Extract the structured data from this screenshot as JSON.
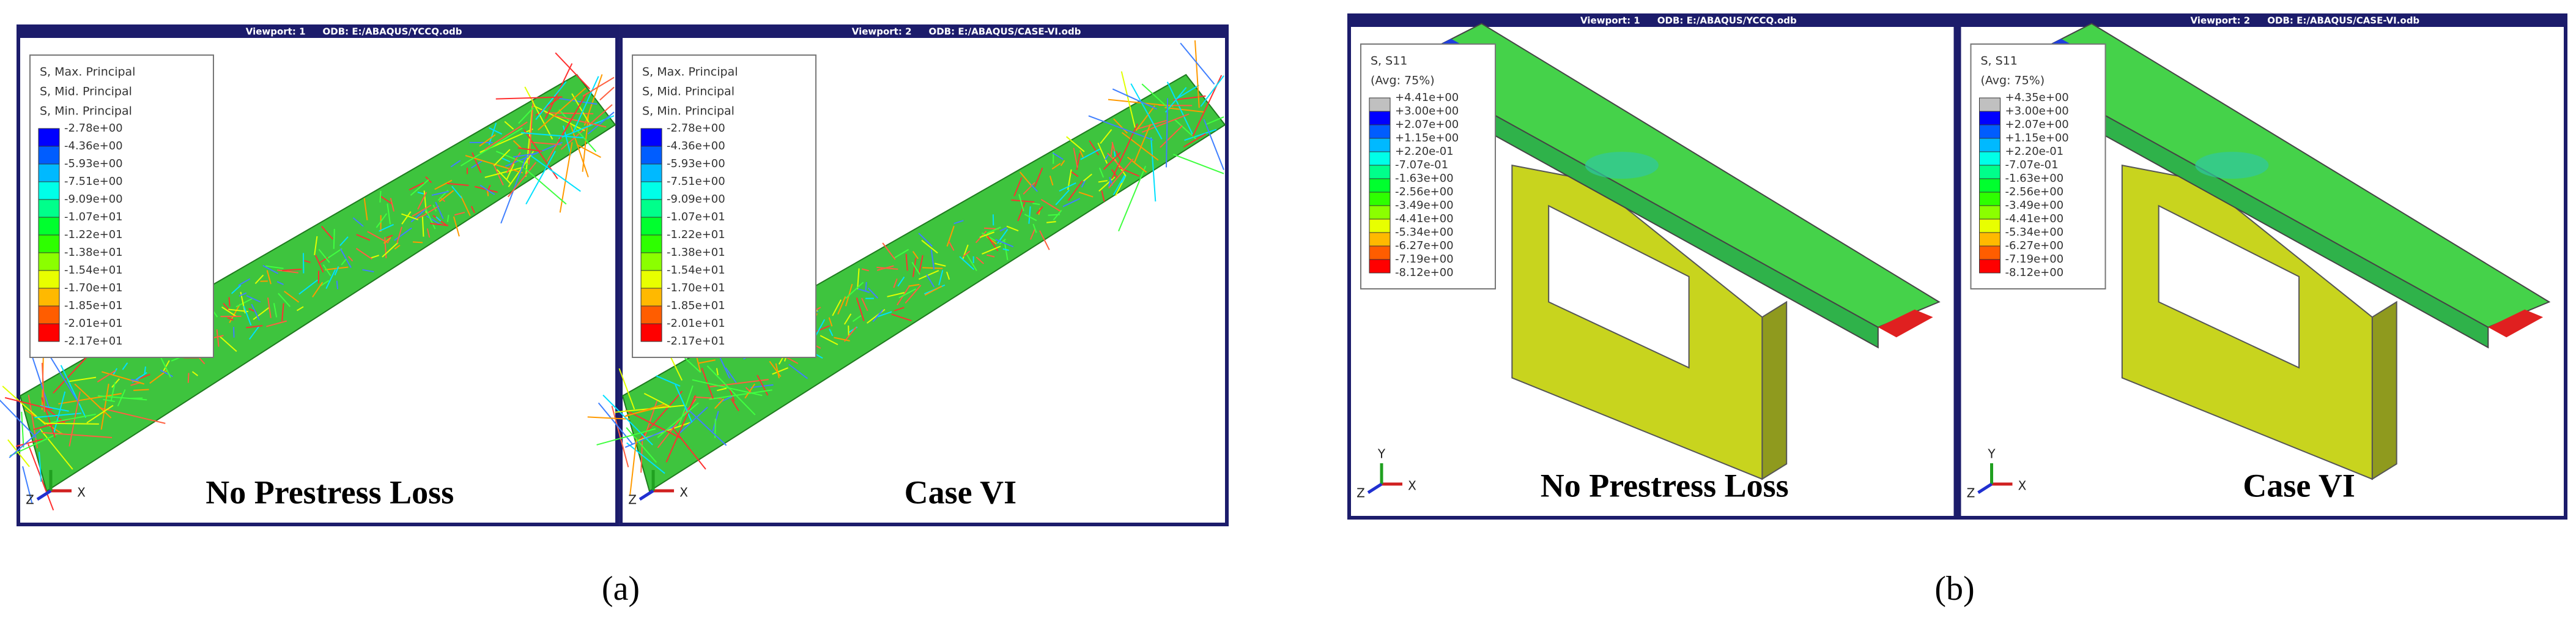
{
  "panels": [
    {
      "label": "(a)",
      "viewports": [
        {
          "viewport": "Viewport: 1",
          "odb": "ODB: E:/ABAQUS/YCCQ.odb",
          "legend_title": [
            "S, Max. Principal",
            "S, Mid. Principal",
            "S, Min. Principal"
          ],
          "legend_values": [
            "-2.78e+00",
            "-4.36e+00",
            "-5.93e+00",
            "-7.51e+00",
            "-9.09e+00",
            "-1.07e+01",
            "-1.22e+01",
            "-1.38e+01",
            "-1.54e+01",
            "-1.70e+01",
            "-1.85e+01",
            "-2.01e+01",
            "-2.17e+01"
          ],
          "axes": [
            "Z",
            "X"
          ],
          "caption": "No Prestress Loss"
        },
        {
          "viewport": "Viewport: 2",
          "odb": "ODB: E:/ABAQUS/CASE-VI.odb",
          "legend_title": [
            "S, Max. Principal",
            "S, Mid. Principal",
            "S, Min. Principal"
          ],
          "legend_values": [
            "-2.78e+00",
            "-4.36e+00",
            "-5.93e+00",
            "-7.51e+00",
            "-9.09e+00",
            "-1.07e+01",
            "-1.22e+01",
            "-1.38e+01",
            "-1.54e+01",
            "-1.70e+01",
            "-1.85e+01",
            "-2.01e+01",
            "-2.17e+01"
          ],
          "axes": [
            "Z",
            "X"
          ],
          "caption": "Case VI"
        }
      ]
    },
    {
      "label": "(b)",
      "viewports": [
        {
          "viewport": "Viewport: 1",
          "odb": "ODB: E:/ABAQUS/YCCQ.odb",
          "legend_title": [
            "S, S11",
            "(Avg: 75%)"
          ],
          "legend_values": [
            "+4.41e+00",
            "+3.00e+00",
            "+2.07e+00",
            "+1.15e+00",
            "+2.20e-01",
            "-7.07e-01",
            "-1.63e+00",
            "-2.56e+00",
            "-3.49e+00",
            "-4.41e+00",
            "-5.34e+00",
            "-6.27e+00",
            "-7.19e+00",
            "-8.12e+00"
          ],
          "axes": [
            "Y",
            "Z",
            "X"
          ],
          "caption": "No Prestress Loss"
        },
        {
          "viewport": "Viewport: 2",
          "odb": "ODB: E:/ABAQUS/CASE-VI.odb",
          "legend_title": [
            "S, S11",
            "(Avg: 75%)"
          ],
          "legend_values": [
            "+4.35e+00",
            "+3.00e+00",
            "+2.07e+00",
            "+1.15e+00",
            "+2.20e-01",
            "-7.07e-01",
            "-1.63e+00",
            "-2.56e+00",
            "-3.49e+00",
            "-4.41e+00",
            "-5.34e+00",
            "-6.27e+00",
            "-7.19e+00",
            "-8.12e+00"
          ],
          "axes": [
            "Y",
            "Z",
            "X"
          ],
          "caption": "Case VI"
        }
      ]
    }
  ]
}
